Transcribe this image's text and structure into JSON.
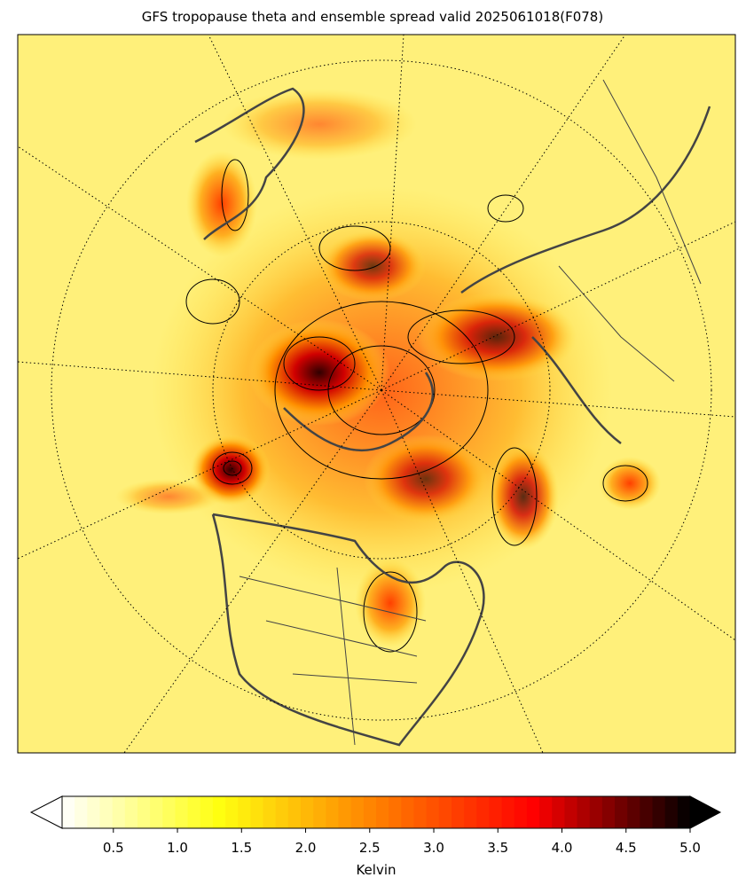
{
  "title": "GFS tropopause theta and ensemble spread valid 2025061018(F078)",
  "colorbar": {
    "label": "Kelvin",
    "range": [
      0.1,
      5.0
    ],
    "ticks": [
      0.5,
      {
        "value": 1,
        "label": "1.0"
      },
      1.5,
      {
        "value": 2,
        "label": "2.0"
      },
      2.5,
      {
        "value": 3,
        "label": "3.0"
      },
      3.5,
      {
        "value": 4,
        "label": "4.0"
      },
      4.5,
      {
        "value": 5,
        "label": "5.0"
      }
    ],
    "colors": [
      "#ffffff",
      "#ffff10",
      "#ff8000",
      "#ff0000",
      "#000000"
    ],
    "extend": "both"
  }
}
